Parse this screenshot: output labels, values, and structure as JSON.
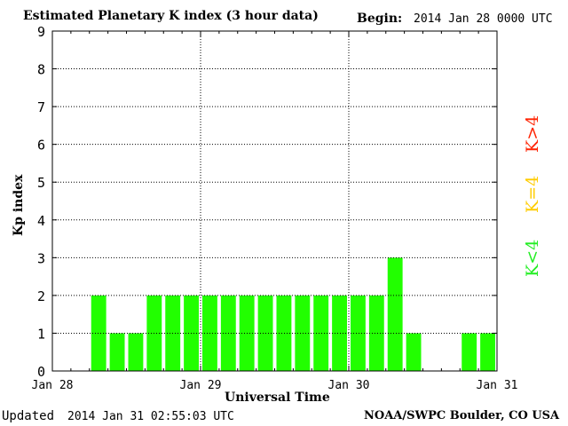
{
  "header": {
    "title": "Estimated Planetary K index (3 hour data)",
    "begin_label": "Begin:",
    "begin_value": "2014 Jan 28 0000 UTC"
  },
  "footer": {
    "updated_label": "Updated",
    "updated_value": "2014 Jan 31 02:55:03 UTC",
    "source": "NOAA/SWPC Boulder, CO USA"
  },
  "legend": {
    "red_label": "K>4",
    "yellow_label": "K=4",
    "green_label": "K<4",
    "red_color": "#ff2200",
    "yellow_color": "#ffcc00",
    "green_color": "#22ee22"
  },
  "colors": {
    "bar": "#22ff00"
  },
  "chart_data": {
    "type": "bar",
    "title": "Estimated Planetary K index (3 hour data)",
    "xlabel": "Universal Time",
    "ylabel": "Kp index",
    "ylim": [
      0,
      9
    ],
    "yticks": [
      "0",
      "1",
      "2",
      "3",
      "4",
      "5",
      "6",
      "7",
      "8",
      "9"
    ],
    "xticks": [
      "Jan 28",
      "Jan 29",
      "Jan 30",
      "Jan 31"
    ],
    "grid": true,
    "bins_per_day": 8,
    "days": 3,
    "values": [
      null,
      null,
      2,
      1,
      1,
      2,
      2,
      2,
      2,
      2,
      2,
      2,
      2,
      2,
      2,
      2,
      2,
      2,
      3,
      1,
      null,
      null,
      1,
      1
    ]
  }
}
